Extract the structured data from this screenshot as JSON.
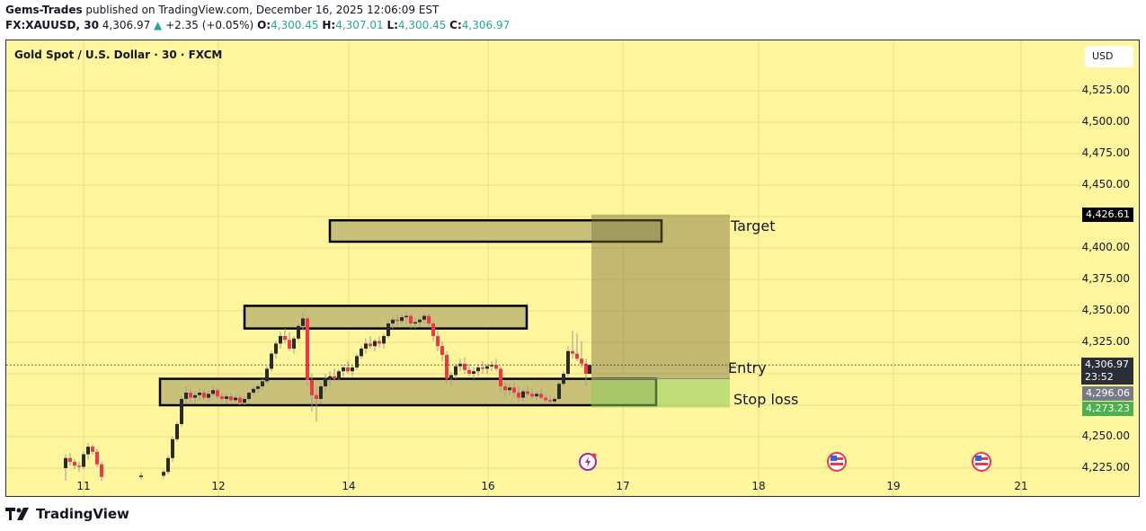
{
  "header": {
    "publisher": "Gems-Trades",
    "published_text": " published on TradingView.com, December 16, 2025 12:06:09 EST",
    "symbol": "FX:XAUUSD, 30",
    "last": "4,306.97",
    "change": "+2.35 (+0.05%)",
    "o_label": "O:",
    "o": "4,300.45",
    "h_label": "H:",
    "h": "4,307.01",
    "l_label": "L:",
    "l": "4,300.45",
    "c_label": "C:",
    "c": "4,306.97"
  },
  "chart": {
    "title": "Gold Spot / U.S. Dollar · 30 · FXCM",
    "currency_button": "USD",
    "price_labels": {
      "target": "4,426.61",
      "current": "4,306.97",
      "countdown": "23:52",
      "entry": "4,296.06",
      "stop": "4,273.23"
    },
    "annotations": {
      "target": "Target",
      "entry": "Entry",
      "stop": "Stop loss"
    }
  },
  "footer": {
    "brand": "TradingView"
  },
  "chart_data": {
    "type": "candlestick",
    "title": "Gold Spot / U.S. Dollar · 30 · FXCM",
    "xlabel": "",
    "ylabel": "USD",
    "x_ticks": [
      "11",
      "12",
      "14",
      "16",
      "17",
      "18",
      "19",
      "21"
    ],
    "y_ticks": [
      4225,
      4250,
      4275,
      4300,
      4325,
      4350,
      4375,
      4400,
      4425,
      4450,
      4475,
      4500,
      4525
    ],
    "y_tick_labels": [
      "4,225.00",
      "4,250.00",
      "4,325.00",
      "4,350.00",
      "4,375.00",
      "4,400.00",
      "4,450.00",
      "4,475.00",
      "4,500.00",
      "4,525.00"
    ],
    "ylim": [
      4215,
      4535
    ],
    "grid": true,
    "last_price": 4306.97,
    "zones": [
      {
        "name": "upper-zone",
        "top": 4422,
        "bottom": 4405
      },
      {
        "name": "resistance-zone",
        "top": 4354,
        "bottom": 4336
      },
      {
        "name": "support-zone",
        "top": 4296,
        "bottom": 4275
      }
    ],
    "long_position": {
      "target": 4426.61,
      "entry": 4296.06,
      "stop": 4273.23
    },
    "candles_approx": [
      [
        72,
        4225,
        4236,
        4215,
        4233
      ],
      [
        77,
        4233,
        4237,
        4227,
        4230
      ],
      [
        82,
        4230,
        4232,
        4224,
        4227
      ],
      [
        87,
        4227,
        4230,
        4222,
        4226
      ],
      [
        92,
        4226,
        4238,
        4224,
        4236
      ],
      [
        97,
        4236,
        4245,
        4232,
        4242
      ],
      [
        102,
        4242,
        4244,
        4236,
        4238
      ],
      [
        107,
        4238,
        4240,
        4226,
        4228
      ],
      [
        112,
        4228,
        4230,
        4215,
        4218
      ],
      [
        156,
        4218,
        4222,
        4216,
        4219
      ],
      [
        181,
        4219,
        4224,
        4217,
        4222
      ],
      [
        186,
        4222,
        4235,
        4220,
        4233
      ],
      [
        191,
        4233,
        4250,
        4230,
        4248
      ],
      [
        196,
        4248,
        4262,
        4246,
        4260
      ],
      [
        201,
        4260,
        4282,
        4258,
        4280
      ],
      [
        206,
        4280,
        4290,
        4276,
        4285
      ],
      [
        211,
        4285,
        4288,
        4277,
        4281
      ],
      [
        216,
        4281,
        4286,
        4276,
        4283
      ],
      [
        221,
        4283,
        4288,
        4279,
        4285
      ],
      [
        226,
        4285,
        4288,
        4279,
        4281
      ],
      [
        231,
        4281,
        4287,
        4278,
        4284
      ],
      [
        236,
        4284,
        4290,
        4282,
        4287
      ],
      [
        241,
        4287,
        4289,
        4280,
        4282
      ],
      [
        246,
        4282,
        4285,
        4278,
        4280
      ],
      [
        251,
        4280,
        4284,
        4276,
        4282
      ],
      [
        256,
        4282,
        4284,
        4277,
        4279
      ],
      [
        261,
        4279,
        4283,
        4276,
        4281
      ],
      [
        266,
        4281,
        4283,
        4275,
        4277
      ],
      [
        271,
        4277,
        4282,
        4275,
        4280
      ],
      [
        276,
        4280,
        4286,
        4278,
        4285
      ],
      [
        281,
        4285,
        4290,
        4283,
        4288
      ],
      [
        286,
        4288,
        4292,
        4285,
        4290
      ],
      [
        291,
        4290,
        4296,
        4287,
        4294
      ],
      [
        296,
        4294,
        4306,
        4292,
        4304
      ],
      [
        301,
        4304,
        4318,
        4302,
        4316
      ],
      [
        306,
        4316,
        4326,
        4312,
        4324
      ],
      [
        311,
        4324,
        4333,
        4320,
        4330
      ],
      [
        316,
        4330,
        4336,
        4324,
        4327
      ],
      [
        321,
        4327,
        4333,
        4318,
        4320
      ],
      [
        326,
        4320,
        4330,
        4316,
        4328
      ],
      [
        331,
        4328,
        4340,
        4326,
        4338
      ],
      [
        336,
        4338,
        4348,
        4334,
        4344
      ],
      [
        341,
        4344,
        4346,
        4290,
        4295
      ],
      [
        346,
        4295,
        4300,
        4270,
        4283
      ],
      [
        351,
        4283,
        4290,
        4262,
        4280
      ],
      [
        356,
        4280,
        4293,
        4276,
        4290
      ],
      [
        361,
        4290,
        4300,
        4286,
        4296
      ],
      [
        366,
        4296,
        4302,
        4290,
        4298
      ],
      [
        371,
        4298,
        4304,
        4294,
        4296
      ],
      [
        376,
        4296,
        4304,
        4294,
        4302
      ],
      [
        381,
        4302,
        4307,
        4298,
        4305
      ],
      [
        386,
        4305,
        4310,
        4300,
        4302
      ],
      [
        391,
        4302,
        4307,
        4298,
        4305
      ],
      [
        396,
        4305,
        4316,
        4303,
        4314
      ],
      [
        401,
        4314,
        4322,
        4312,
        4320
      ],
      [
        406,
        4320,
        4328,
        4316,
        4324
      ],
      [
        411,
        4324,
        4330,
        4320,
        4322
      ],
      [
        416,
        4322,
        4328,
        4318,
        4326
      ],
      [
        421,
        4326,
        4330,
        4321,
        4324
      ],
      [
        426,
        4324,
        4332,
        4320,
        4330
      ],
      [
        431,
        4330,
        4342,
        4328,
        4340
      ],
      [
        436,
        4340,
        4345,
        4336,
        4343
      ],
      [
        441,
        4343,
        4347,
        4338,
        4342
      ],
      [
        446,
        4342,
        4348,
        4340,
        4345
      ],
      [
        451,
        4345,
        4349,
        4340,
        4346
      ],
      [
        456,
        4346,
        4348,
        4336,
        4340
      ],
      [
        461,
        4340,
        4344,
        4336,
        4341
      ],
      [
        466,
        4341,
        4345,
        4337,
        4343
      ],
      [
        471,
        4343,
        4348,
        4340,
        4346
      ],
      [
        476,
        4346,
        4348,
        4338,
        4340
      ],
      [
        481,
        4340,
        4342,
        4326,
        4330
      ],
      [
        486,
        4330,
        4334,
        4318,
        4322
      ],
      [
        491,
        4322,
        4326,
        4310,
        4315
      ],
      [
        496,
        4315,
        4318,
        4292,
        4296
      ],
      [
        501,
        4296,
        4302,
        4290,
        4299
      ],
      [
        506,
        4299,
        4308,
        4296,
        4306
      ],
      [
        511,
        4306,
        4312,
        4302,
        4308
      ],
      [
        516,
        4308,
        4313,
        4300,
        4303
      ],
      [
        521,
        4303,
        4308,
        4298,
        4300
      ],
      [
        526,
        4300,
        4305,
        4296,
        4302
      ],
      [
        531,
        4302,
        4308,
        4298,
        4305
      ],
      [
        536,
        4305,
        4310,
        4300,
        4304
      ],
      [
        541,
        4304,
        4308,
        4300,
        4306
      ],
      [
        546,
        4306,
        4310,
        4302,
        4307
      ],
      [
        551,
        4307,
        4312,
        4302,
        4304
      ],
      [
        556,
        4304,
        4306,
        4285,
        4290
      ],
      [
        561,
        4290,
        4293,
        4282,
        4287
      ],
      [
        566,
        4287,
        4292,
        4283,
        4289
      ],
      [
        571,
        4289,
        4293,
        4282,
        4285
      ],
      [
        576,
        4285,
        4290,
        4278,
        4281
      ],
      [
        581,
        4281,
        4288,
        4278,
        4286
      ],
      [
        586,
        4286,
        4290,
        4282,
        4284
      ],
      [
        591,
        4284,
        4288,
        4280,
        4282
      ],
      [
        596,
        4282,
        4286,
        4279,
        4284
      ],
      [
        601,
        4284,
        4288,
        4280,
        4281
      ],
      [
        606,
        4281,
        4284,
        4277,
        4279
      ],
      [
        611,
        4279,
        4283,
        4276,
        4278
      ],
      [
        616,
        4278,
        4282,
        4276,
        4280
      ],
      [
        621,
        4280,
        4294,
        4279,
        4292
      ],
      [
        626,
        4292,
        4302,
        4290,
        4300
      ],
      [
        631,
        4300,
        4322,
        4298,
        4318
      ],
      [
        636,
        4318,
        4334,
        4312,
        4316
      ],
      [
        641,
        4316,
        4332,
        4310,
        4312
      ],
      [
        646,
        4312,
        4326,
        4305,
        4308
      ],
      [
        651,
        4308,
        4312,
        4290,
        4300
      ],
      [
        655,
        4300,
        4307,
        4300,
        4307
      ]
    ],
    "events": [
      {
        "x_date": "16.7",
        "icon": "lightning-event-icon"
      },
      {
        "x_date": "18.6",
        "icon": "us-flag-icon"
      },
      {
        "x_date": "20.6",
        "icon": "us-flag-icon"
      }
    ]
  }
}
